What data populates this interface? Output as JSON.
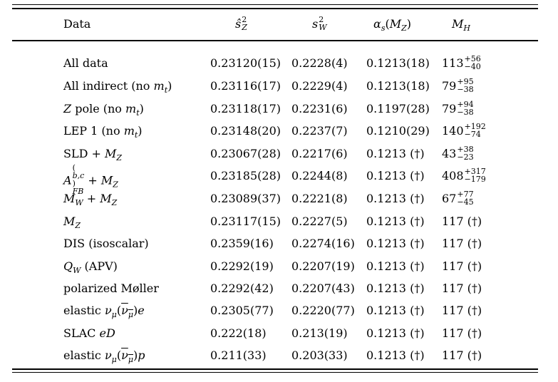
{
  "headers": {
    "data": "Data",
    "sz2": "ŝ²_Z",
    "sw2": "s²_W",
    "alpha": "αs(MZ)",
    "mh": "MH"
  },
  "rows": [
    {
      "label": "All data",
      "sz2": "0.23120(15)",
      "sw2": "0.2228(4)",
      "alpha": "0.1213(18)",
      "mh_base": "113",
      "mh_up": "+56",
      "mh_down": "−40"
    },
    {
      "label": "All indirect (no m_t)",
      "sz2": "0.23116(17)",
      "sw2": "0.2229(4)",
      "alpha": "0.1213(18)",
      "mh_base": "79",
      "mh_up": "+95",
      "mh_down": "−38"
    },
    {
      "label": "Z pole (no m_t)",
      "sz2": "0.23118(17)",
      "sw2": "0.2231(6)",
      "alpha": "0.1197(28)",
      "mh_base": "79",
      "mh_up": "+94",
      "mh_down": "−38"
    },
    {
      "label": "LEP 1 (no m_t)",
      "sz2": "0.23148(20)",
      "sw2": "0.2237(7)",
      "alpha": "0.1210(29)",
      "mh_base": "140",
      "mh_up": "+192",
      "mh_down": "−74"
    },
    {
      "label": "SLD + M_Z",
      "sz2": "0.23067(28)",
      "sw2": "0.2217(6)",
      "alpha": "0.1213 (†)",
      "mh_base": "43",
      "mh_up": "+38",
      "mh_down": "−23"
    },
    {
      "label": "A_FB^(b,c) + M_Z",
      "sz2": "0.23185(28)",
      "sw2": "0.2244(8)",
      "alpha": "0.1213 (†)",
      "mh_base": "408",
      "mh_up": "+317",
      "mh_down": "−179"
    },
    {
      "label": "M_W + M_Z",
      "sz2": "0.23089(37)",
      "sw2": "0.2221(8)",
      "alpha": "0.1213 (†)",
      "mh_base": "67",
      "mh_up": "+77",
      "mh_down": "−45"
    },
    {
      "label": "M_Z",
      "sz2": "0.23117(15)",
      "sw2": "0.2227(5)",
      "alpha": "0.1213 (†)",
      "mh": "117 (†)"
    },
    {
      "label": "DIS (isoscalar)",
      "sz2": "0.2359(16)",
      "sw2": "0.2274(16)",
      "alpha": "0.1213 (†)",
      "mh": "117 (†)"
    },
    {
      "label": "Q_W (APV)",
      "sz2": "0.2292(19)",
      "sw2": "0.2207(19)",
      "alpha": "0.1213 (†)",
      "mh": "117 (†)"
    },
    {
      "label": "polarized Møller",
      "sz2": "0.2292(42)",
      "sw2": "0.2207(43)",
      "alpha": "0.1213 (†)",
      "mh": "117 (†)"
    },
    {
      "label": "elastic ν_μ(ν̄_μ)e",
      "sz2": "0.2305(77)",
      "sw2": "0.2220(77)",
      "alpha": "0.1213 (†)",
      "mh": "117 (†)"
    },
    {
      "label": "SLAC eD",
      "sz2": "0.222(18)",
      "sw2": "0.213(19)",
      "alpha": "0.1213 (†)",
      "mh": "117 (†)"
    },
    {
      "label": "elastic ν_μ(ν̄_μ)p",
      "sz2": "0.211(33)",
      "sw2": "0.203(33)",
      "alpha": "0.1213 (†)",
      "mh": "117 (†)"
    }
  ]
}
